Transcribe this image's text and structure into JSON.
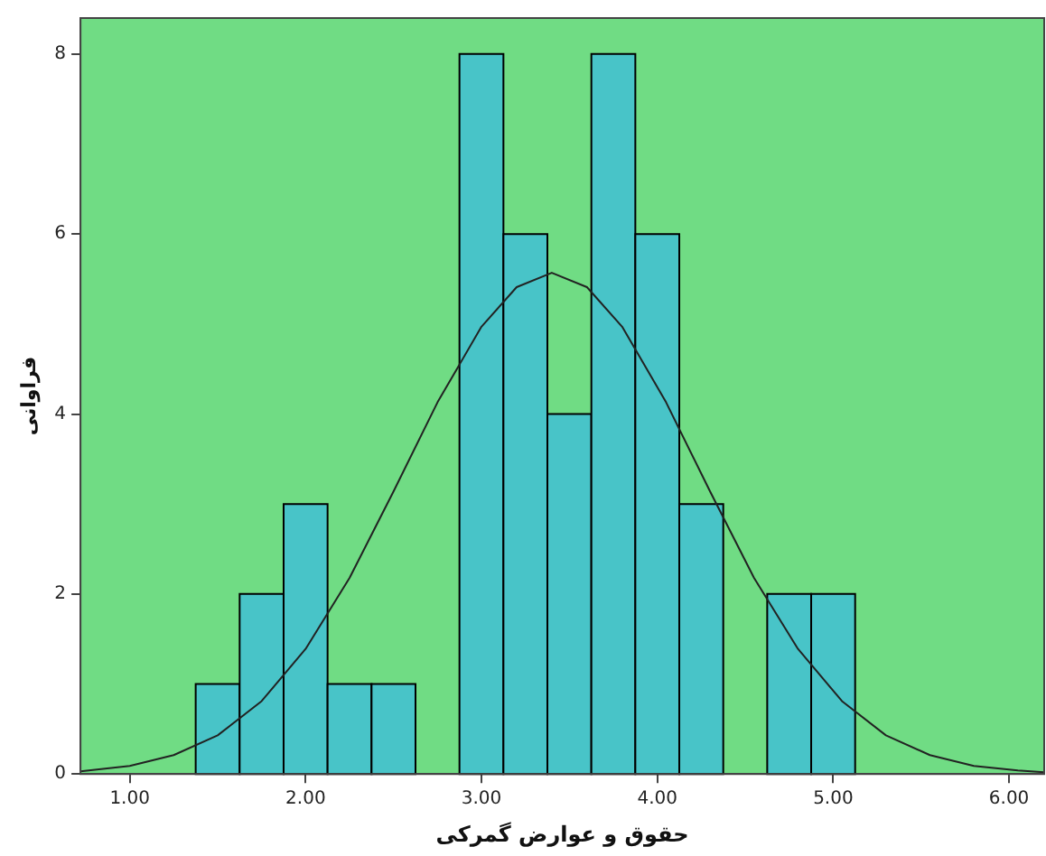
{
  "chart_data": {
    "type": "histogram",
    "xlabel": "حقوق و عوارض گمرکی",
    "ylabel": "فراوانی",
    "bins": [
      1.375,
      1.625,
      1.875,
      2.125,
      2.375,
      2.625,
      2.875,
      3.125,
      3.375,
      3.625,
      3.875,
      4.125,
      4.375,
      4.625,
      4.875,
      5.125
    ],
    "values": [
      1,
      2,
      3,
      1,
      1,
      0,
      8,
      6,
      4,
      8,
      6,
      3,
      0,
      2,
      2
    ],
    "color": "#48c4c8",
    "series": [
      {
        "type": "line",
        "color": "#222222",
        "x": [
          0.72,
          1,
          1.25,
          1.5,
          1.75,
          2,
          2.25,
          2.5,
          2.75,
          3,
          3.2,
          3.4,
          3.6,
          3.8,
          4.05,
          4.3,
          4.55,
          4.8,
          5.05,
          5.3,
          5.55,
          5.8,
          6.05,
          6.2
        ],
        "values": [
          0.03,
          0.09,
          0.21,
          0.43,
          0.81,
          1.39,
          2.18,
          3.14,
          4.13,
          4.97,
          5.41,
          5.57,
          5.41,
          4.97,
          4.13,
          3.14,
          2.18,
          1.39,
          0.81,
          0.43,
          0.21,
          0.09,
          0.04,
          0.02
        ]
      }
    ],
    "xlim": [
      0.72,
      6.2
    ],
    "xticks": [
      {
        "value": 1,
        "label": "1.00"
      },
      {
        "value": 2,
        "label": "2.00"
      },
      {
        "value": 3,
        "label": "3.00"
      },
      {
        "value": 4,
        "label": "4.00"
      },
      {
        "value": 5,
        "label": "5.00"
      },
      {
        "value": 6,
        "label": "6.00"
      }
    ],
    "ylim": [
      0,
      8.4
    ],
    "yticks": [
      0,
      2,
      4,
      6,
      8
    ],
    "grid": false,
    "legend": false,
    "marker": "none"
  }
}
